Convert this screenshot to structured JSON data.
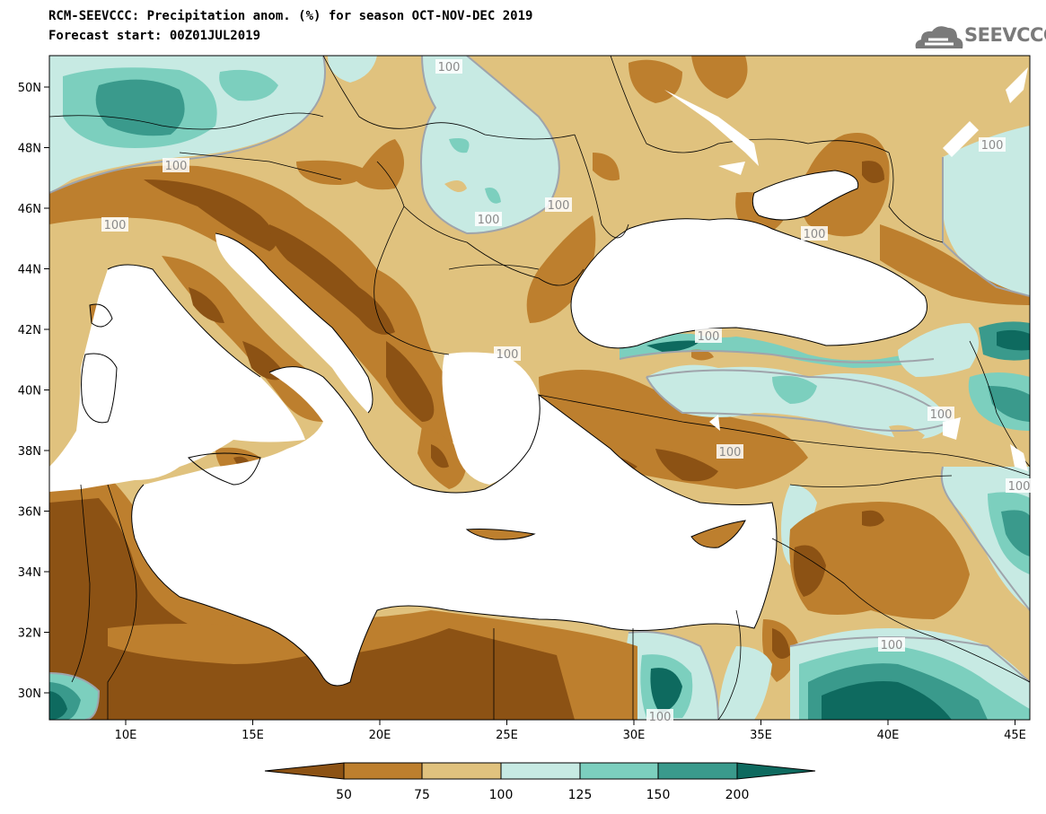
{
  "header": {
    "title_line1": "RCM-SEEVCCC: Precipitation anom. (%) for season OCT-NOV-DEC 2019",
    "title_line2": "Forecast start: 00Z01JUL2019"
  },
  "logo": {
    "text": "SEEVCCC",
    "icon": "cloud-icon"
  },
  "map": {
    "lat_ticks": [
      "50N",
      "48N",
      "46N",
      "44N",
      "42N",
      "40N",
      "38N",
      "36N",
      "34N",
      "32N",
      "30N"
    ],
    "lon_ticks": [
      "10E",
      "15E",
      "20E",
      "25E",
      "30E",
      "35E",
      "40E",
      "45E"
    ],
    "contour_labels": [
      "100",
      "100",
      "100",
      "100",
      "100",
      "100",
      "100",
      "100",
      "100",
      "100",
      "100",
      "100",
      "100",
      "100"
    ],
    "colors": {
      "below_50": "#8c5214",
      "50_75": "#bd7f2e",
      "75_100": "#e0c27e",
      "100_125": "#c7eae3",
      "125_150": "#7ccfbe",
      "150_200": "#3a9a8c",
      "above_200": "#0e6a5f",
      "sea": "#ffffff",
      "contour": "#9fa4ab"
    }
  },
  "colorbar": {
    "labels": [
      "50",
      "75",
      "100",
      "125",
      "150",
      "200"
    ],
    "colors": [
      "#8c5214",
      "#bd7f2e",
      "#e0c27e",
      "#c7eae3",
      "#7ccfbe",
      "#3a9a8c",
      "#0e6a5f"
    ]
  }
}
